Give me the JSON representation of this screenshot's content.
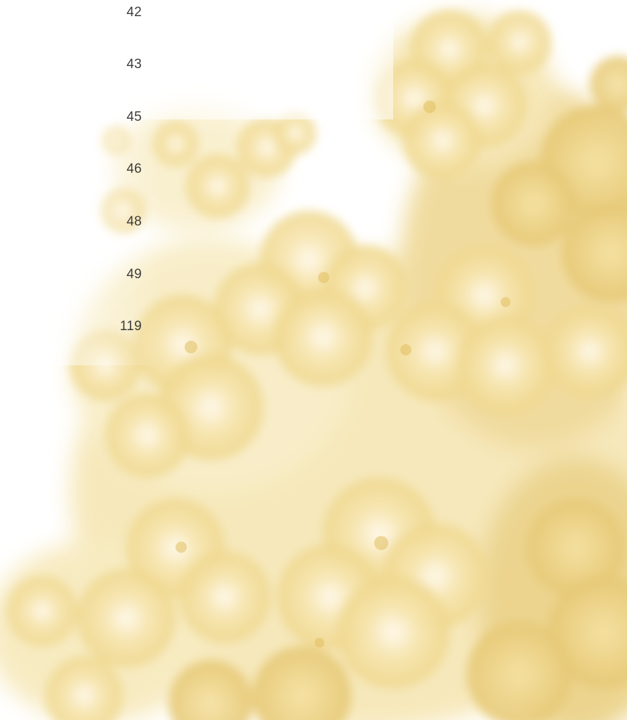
{
  "page_numbers": [
    "42",
    "43",
    "45",
    "46",
    "48",
    "49",
    "119"
  ],
  "background": {
    "icon": "peony-flower-watercolor",
    "base_color": "#ffffff",
    "flower_color_light": "#fbf1cf",
    "flower_color_mid": "#f3dfa0",
    "flower_color_deep": "#e9cf7e",
    "text_color": "#3c3c3c"
  }
}
